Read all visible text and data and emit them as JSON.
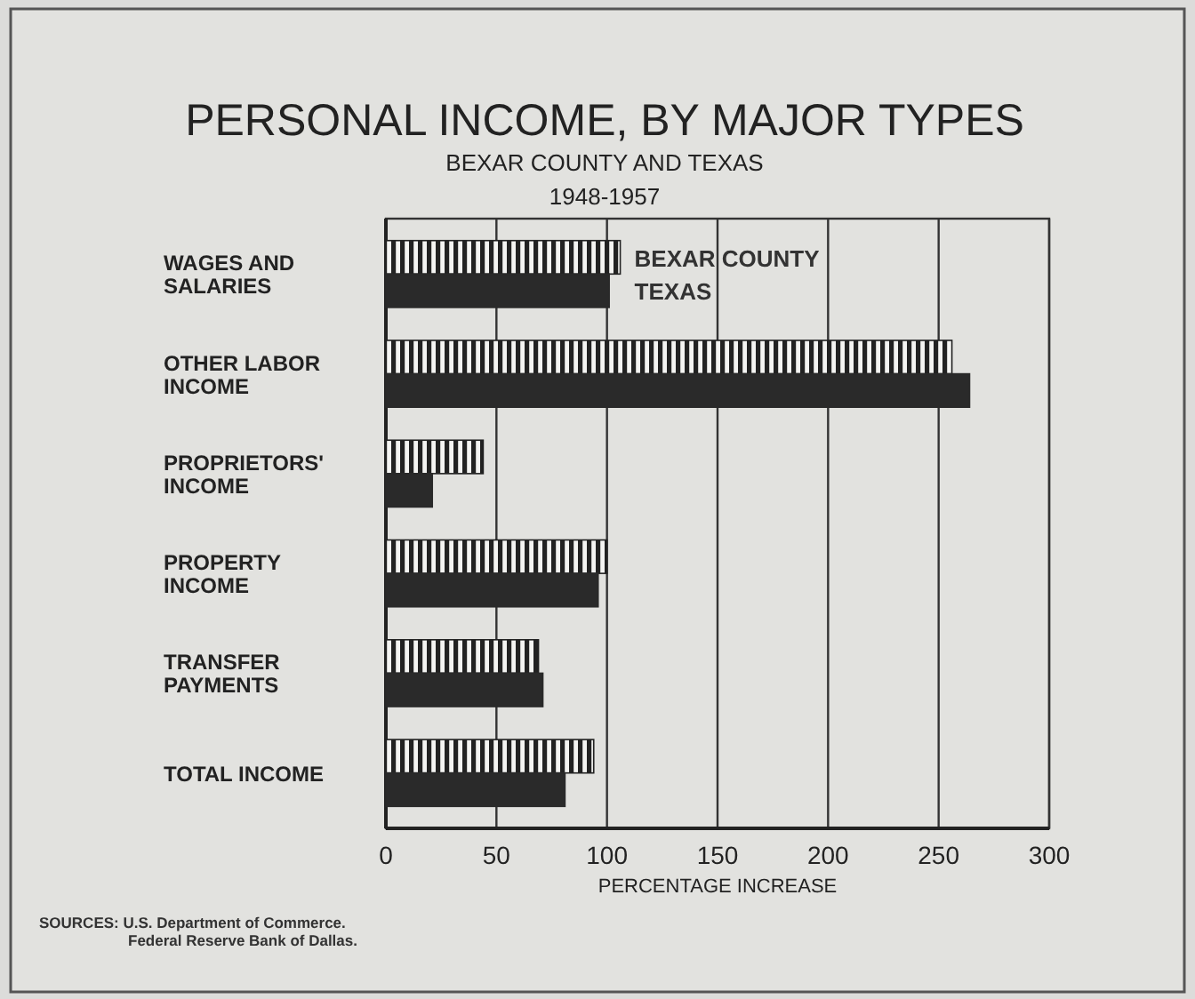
{
  "chart_data": {
    "type": "bar",
    "orientation": "horizontal",
    "title": "PERSONAL INCOME, BY MAJOR TYPES",
    "subtitle": "BEXAR COUNTY AND TEXAS\n1948-1957",
    "xlabel": "PERCENTAGE INCREASE",
    "categories": [
      "WAGES AND SALARIES",
      "OTHER LABOR INCOME",
      "PROPRIETORS' INCOME",
      "PROPERTY INCOME",
      "TRANSFER PAYMENTS",
      "TOTAL INCOME"
    ],
    "series": [
      {
        "name": "BEXAR COUNTY",
        "color": "#222222",
        "values": [
          106,
          256,
          44,
          100,
          69,
          94
        ]
      },
      {
        "name": "TEXAS",
        "color": "#2a2a2a",
        "values": [
          101,
          264,
          21,
          96,
          71,
          81
        ]
      }
    ],
    "xlim": [
      0,
      300
    ],
    "xticks": [
      0,
      50,
      100,
      150,
      200,
      250,
      300
    ],
    "grid": "x",
    "annotations": [
      "SOURCES: U.S. Department of Commerce.\nFederal Reserve Bank of Dallas."
    ]
  }
}
